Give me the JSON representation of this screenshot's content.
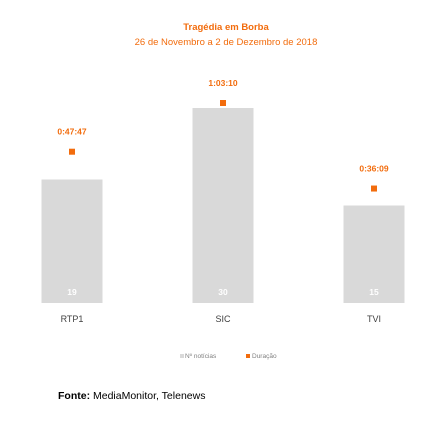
{
  "colors": {
    "accent": "#f26c0d",
    "bar": "#d9d9d9",
    "bar_label": "#ffffff",
    "axis_text": "#404040",
    "legend_text": "#7f7f7f"
  },
  "chart_data": {
    "type": "bar",
    "title": "Tragédia em Borba",
    "subtitle": "26 de Novembro a 2 de Dezembro de 2018",
    "categories": [
      "RTP1",
      "SIC",
      "TVI"
    ],
    "series": [
      {
        "name": "Nº notícias",
        "type": "bar",
        "values": [
          19,
          30,
          15
        ],
        "labels": [
          "19",
          "30",
          "15"
        ]
      },
      {
        "name": "Duração",
        "type": "scatter",
        "values_seconds": [
          2867,
          3790,
          2169
        ],
        "labels": [
          "0:47:47",
          "1:03:10",
          "0:36:09"
        ]
      }
    ],
    "legend_position": "bottom",
    "grid": false
  },
  "source": {
    "label": "Fonte:",
    "text": "MediaMonitor, Telenews"
  }
}
